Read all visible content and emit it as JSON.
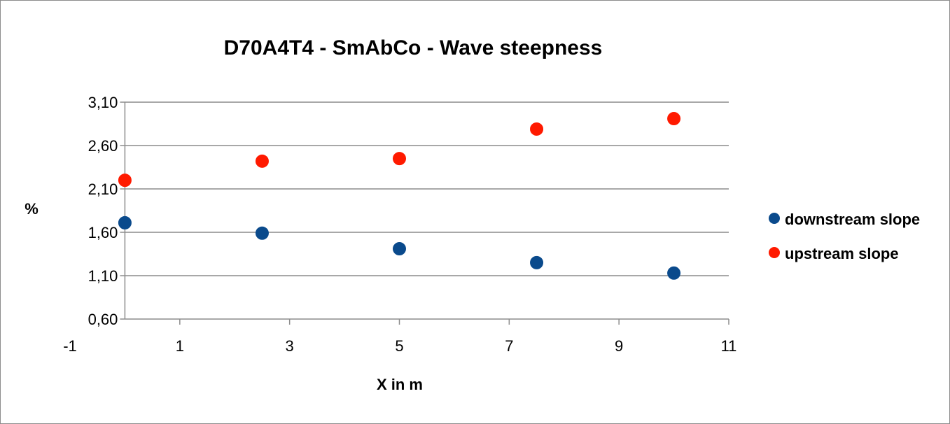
{
  "chart_data": {
    "type": "scatter",
    "title": "D70A4T4  - SmAbCo - Wave steepness",
    "xlabel": "X in m",
    "ylabel": "%",
    "xlim": [
      -1,
      11
    ],
    "ylim": [
      0.6,
      3.1
    ],
    "x_ticks": [
      -1,
      1,
      3,
      5,
      7,
      9,
      11
    ],
    "x_tick_labels": [
      "-1",
      "1",
      "3",
      "5",
      "7",
      "9",
      "11"
    ],
    "y_ticks": [
      0.6,
      1.1,
      1.6,
      2.1,
      2.6,
      3.1
    ],
    "y_tick_labels": [
      "0,60",
      "1,10",
      "1,60",
      "2,10",
      "2,60",
      "3,10"
    ],
    "grid": "horizontal",
    "legend_position": "right",
    "series": [
      {
        "name": "downstream slope",
        "color": "#0a4a8c",
        "points": [
          {
            "x": 0,
            "y": 1.71
          },
          {
            "x": 2.5,
            "y": 1.59
          },
          {
            "x": 5,
            "y": 1.41
          },
          {
            "x": 7.5,
            "y": 1.25
          },
          {
            "x": 10,
            "y": 1.13
          }
        ]
      },
      {
        "name": "upstream slope",
        "color": "#ff1a00",
        "points": [
          {
            "x": 0,
            "y": 2.2
          },
          {
            "x": 2.5,
            "y": 2.42
          },
          {
            "x": 5,
            "y": 2.45
          },
          {
            "x": 7.5,
            "y": 2.79
          },
          {
            "x": 10,
            "y": 2.91
          }
        ]
      }
    ]
  }
}
